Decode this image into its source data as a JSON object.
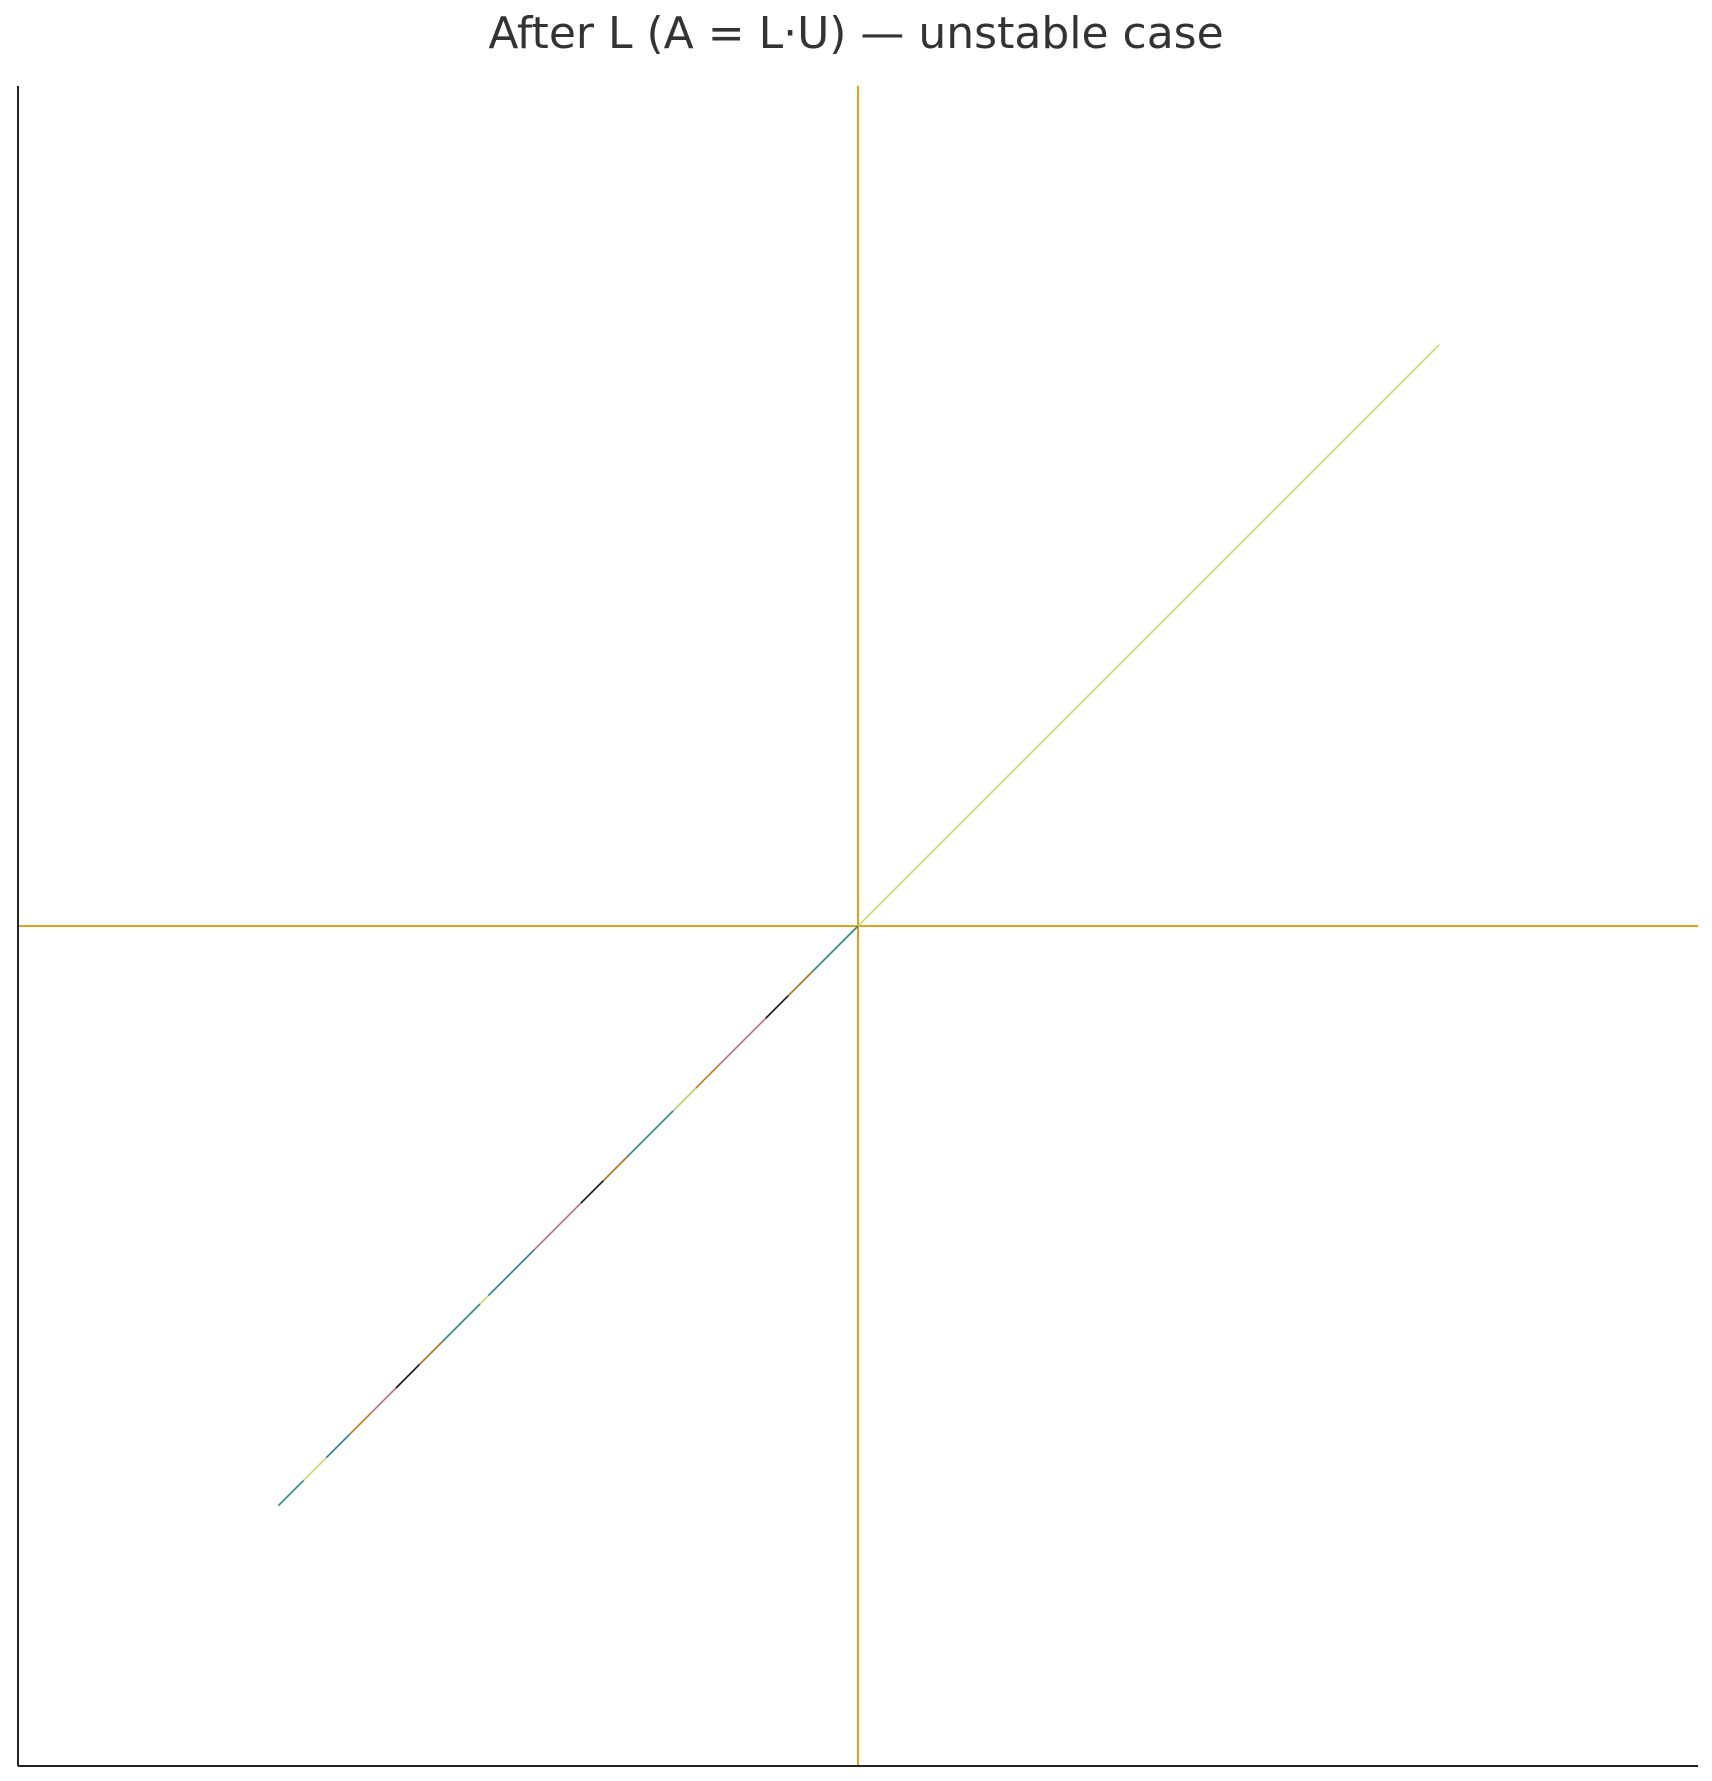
{
  "chart_data": {
    "type": "line",
    "title": "After L (A = L·U) — unstable case",
    "xlabel": "",
    "ylabel": "",
    "xlim": [
      -1,
      1
    ],
    "ylim": [
      -1,
      1
    ],
    "grid": false,
    "legend": "none",
    "reference_lines": {
      "x": 0,
      "y": 0,
      "color": "#e0a020"
    },
    "spine_color": "#222222",
    "series": [
      {
        "color": "#c8d86a",
        "values": [
          [
            0,
            0
          ],
          [
            0.692,
            0.692
          ]
        ]
      },
      {
        "color": "#2a8a7a",
        "values": [
          [
            0,
            0
          ],
          [
            -0.083,
            -0.083
          ]
        ]
      },
      {
        "color": "#c07820",
        "values": [
          [
            -0.055,
            -0.055
          ],
          [
            -0.083,
            -0.083
          ]
        ]
      },
      {
        "color": "#111111",
        "values": [
          [
            -0.083,
            -0.083
          ],
          [
            -0.11,
            -0.11
          ]
        ]
      },
      {
        "color": "#c06a8a",
        "values": [
          [
            -0.11,
            -0.11
          ],
          [
            -0.165,
            -0.165
          ]
        ]
      },
      {
        "color": "#c07820",
        "values": [
          [
            -0.165,
            -0.165
          ],
          [
            -0.193,
            -0.193
          ]
        ]
      },
      {
        "color": "#2a7a9a",
        "values": [
          [
            -0.193,
            -0.193
          ],
          [
            -0.22,
            -0.22
          ]
        ]
      },
      {
        "color": "#c8d86a",
        "values": [
          [
            -0.193,
            -0.193
          ],
          [
            -0.22,
            -0.22
          ]
        ]
      },
      {
        "color": "#2a8a7a",
        "values": [
          [
            -0.22,
            -0.22
          ],
          [
            -0.303,
            -0.303
          ]
        ]
      },
      {
        "color": "#c07820",
        "values": [
          [
            -0.275,
            -0.275
          ],
          [
            -0.303,
            -0.303
          ]
        ]
      },
      {
        "color": "#111111",
        "values": [
          [
            -0.303,
            -0.303
          ],
          [
            -0.33,
            -0.33
          ]
        ]
      },
      {
        "color": "#c06a8a",
        "values": [
          [
            -0.33,
            -0.33
          ],
          [
            -0.385,
            -0.385
          ]
        ]
      },
      {
        "color": "#2a7a9a",
        "values": [
          [
            -0.385,
            -0.385
          ],
          [
            -0.44,
            -0.44
          ]
        ]
      },
      {
        "color": "#c8d86a",
        "values": [
          [
            -0.44,
            -0.44
          ],
          [
            -0.45,
            -0.45
          ]
        ]
      },
      {
        "color": "#2a8a7a",
        "values": [
          [
            -0.45,
            -0.45
          ],
          [
            -0.522,
            -0.522
          ]
        ]
      },
      {
        "color": "#c07820",
        "values": [
          [
            -0.495,
            -0.495
          ],
          [
            -0.522,
            -0.522
          ]
        ]
      },
      {
        "color": "#111111",
        "values": [
          [
            -0.522,
            -0.522
          ],
          [
            -0.55,
            -0.55
          ]
        ]
      },
      {
        "color": "#c06a8a",
        "values": [
          [
            -0.55,
            -0.55
          ],
          [
            -0.578,
            -0.578
          ]
        ]
      },
      {
        "color": "#c07820",
        "values": [
          [
            -0.578,
            -0.578
          ],
          [
            -0.605,
            -0.605
          ]
        ]
      },
      {
        "color": "#2a7a9a",
        "values": [
          [
            -0.605,
            -0.605
          ],
          [
            -0.633,
            -0.633
          ]
        ]
      },
      {
        "color": "#c8d86a",
        "values": [
          [
            -0.633,
            -0.633
          ],
          [
            -0.66,
            -0.66
          ]
        ]
      },
      {
        "color": "#2a8a7a",
        "values": [
          [
            -0.66,
            -0.66
          ],
          [
            -0.69,
            -0.69
          ]
        ]
      }
    ]
  }
}
